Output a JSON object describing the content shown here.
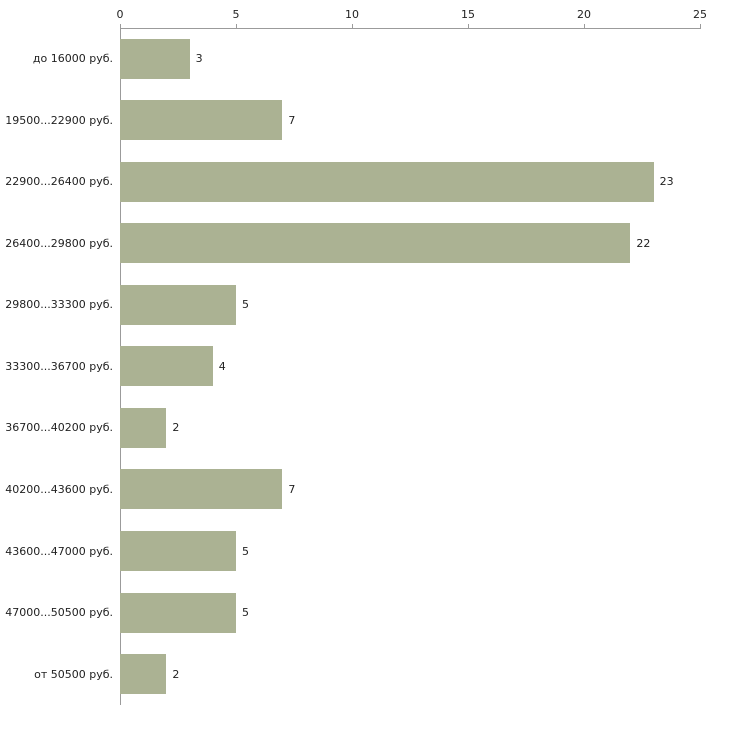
{
  "chart_data": {
    "type": "bar",
    "orientation": "horizontal",
    "title": "",
    "xlabel": "",
    "ylabel": "",
    "categories": [
      "до 16000 руб.",
      "19500...22900 руб.",
      "22900...26400 руб.",
      "26400...29800 руб.",
      "29800...33300 руб.",
      "33300...36700 руб.",
      "36700...40200 руб.",
      "40200...43600 руб.",
      "43600...47000 руб.",
      "47000...50500 руб.",
      "от 50500 руб."
    ],
    "values": [
      3,
      7,
      23,
      22,
      5,
      4,
      2,
      7,
      5,
      5,
      2
    ],
    "xlim": [
      0,
      25
    ],
    "x_ticks": [
      "0",
      "5",
      "10",
      "15",
      "20",
      "25"
    ],
    "grid": false,
    "legend": false,
    "axis_position": "top",
    "bar_color": "#abb293",
    "axis_color": "#9b9b9b",
    "text_color": "#222222",
    "background_color": "#ffffff"
  }
}
